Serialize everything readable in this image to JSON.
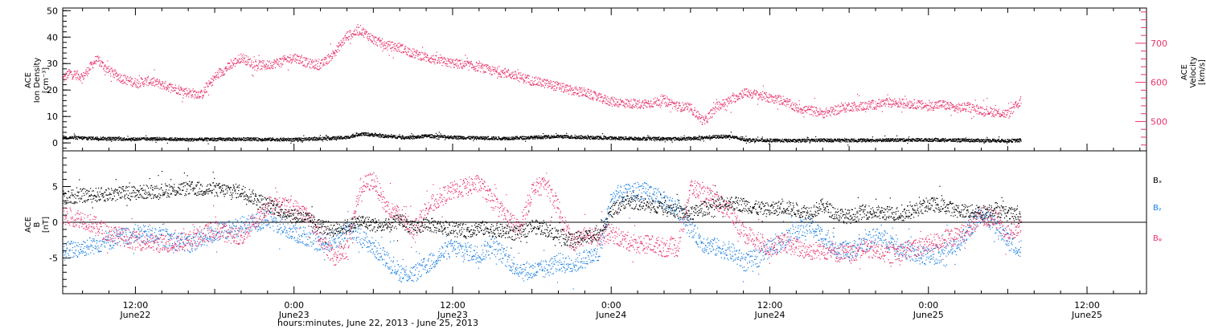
{
  "figure": {
    "x_axis_title": "hours:minutes, June 22, 2013 - June 25, 2013"
  },
  "x_ticks": [
    {
      "hhmm": "12:00",
      "day": "June22",
      "hour": 12
    },
    {
      "hhmm": "0:00",
      "day": "June23",
      "hour": 24
    },
    {
      "hhmm": "12:00",
      "day": "June23",
      "hour": 36
    },
    {
      "hhmm": "0:00",
      "day": "June24",
      "hour": 48
    },
    {
      "hhmm": "12:00",
      "day": "June24",
      "hour": 60
    },
    {
      "hhmm": "0:00",
      "day": "June25",
      "hour": 72
    },
    {
      "hhmm": "12:00",
      "day": "June25",
      "hour": 84
    }
  ],
  "colors": {
    "density": "#000000",
    "velocity": "#e8336b",
    "bx": "#000000",
    "by": "#1a7fe0",
    "bz": "#e8336b",
    "axis": "#000000"
  },
  "chart_data": [
    {
      "type": "scatter",
      "name": "ACE plasma panel",
      "x_unit": "hours since June 22, 2013 00:00",
      "xlim": [
        6.5,
        88.5
      ],
      "left_axis": {
        "label_lines": [
          "ACE",
          "Ion Density",
          "[cm⁻³]"
        ],
        "ylim": [
          -3,
          51
        ],
        "ticks": [
          0,
          10,
          20,
          30,
          40,
          50
        ]
      },
      "right_axis": {
        "label_lines": [
          "ACE",
          "Velocity",
          "[km/s]"
        ],
        "ylim": [
          425,
          790
        ],
        "ticks": [
          500,
          600,
          700
        ]
      },
      "series": [
        {
          "name": "Ion Density",
          "axis": "left",
          "x": [
            6.5,
            8,
            10,
            12,
            14,
            16,
            18,
            20,
            22,
            24,
            26,
            28,
            29,
            30,
            31,
            32,
            33,
            34,
            36,
            38,
            40,
            42,
            44,
            46,
            48,
            50,
            52,
            54,
            56,
            57,
            58,
            60,
            62,
            64,
            66,
            68,
            70,
            72,
            74,
            76,
            78,
            79
          ],
          "y": [
            2.2,
            2.0,
            1.8,
            1.6,
            1.7,
            1.4,
            1.5,
            1.6,
            1.5,
            1.4,
            1.8,
            2.2,
            3.6,
            3.2,
            2.6,
            2.4,
            2.2,
            2.8,
            2.3,
            2.0,
            1.9,
            2.2,
            2.6,
            2.2,
            2.0,
            1.8,
            1.7,
            1.8,
            2.5,
            2.6,
            1.4,
            1.1,
            1.0,
            1.2,
            1.1,
            1.2,
            1.3,
            1.3,
            1.2,
            1.1,
            1.0,
            1.1
          ]
        },
        {
          "name": "Velocity",
          "axis": "right",
          "x": [
            6.5,
            7,
            8,
            9,
            10,
            11,
            12,
            13,
            14,
            15,
            16,
            17,
            18,
            19,
            20,
            21,
            22,
            23,
            24,
            25,
            26,
            27,
            28,
            29,
            30,
            31,
            32,
            33,
            34,
            35,
            36,
            37,
            38,
            39,
            40,
            41,
            42,
            43,
            44,
            45,
            46,
            47,
            48,
            49,
            50,
            51,
            52,
            53,
            54,
            55,
            56,
            57,
            58,
            59,
            60,
            61,
            62,
            63,
            64,
            65,
            66,
            67,
            68,
            69,
            70,
            71,
            72,
            73,
            74,
            75,
            76,
            77,
            78,
            79
          ],
          "y": [
            610,
            625,
            615,
            660,
            630,
            610,
            600,
            605,
            595,
            585,
            575,
            570,
            615,
            640,
            665,
            645,
            645,
            655,
            665,
            650,
            645,
            675,
            720,
            735,
            710,
            695,
            690,
            675,
            665,
            655,
            650,
            645,
            640,
            630,
            625,
            615,
            605,
            598,
            590,
            580,
            575,
            562,
            552,
            548,
            545,
            548,
            556,
            540,
            535,
            500,
            540,
            555,
            575,
            570,
            560,
            555,
            535,
            530,
            522,
            530,
            540,
            540,
            545,
            550,
            548,
            545,
            540,
            545,
            535,
            538,
            530,
            525,
            520,
            555
          ]
        }
      ]
    },
    {
      "type": "scatter",
      "name": "ACE magnetic field panel",
      "x_unit": "hours since June 22, 2013 00:00",
      "xlim": [
        6.5,
        88.5
      ],
      "left_axis": {
        "label_lines": [
          "ACE",
          "B",
          "[nT]"
        ],
        "ylim": [
          -10,
          10
        ],
        "ticks": [
          -5,
          0,
          5
        ]
      },
      "zero_line": 0,
      "legend": {
        "position": "right",
        "entries": [
          "Bₓ",
          "Bᵧ",
          "Bᵩ"
        ]
      },
      "series": [
        {
          "name": "Bx",
          "x": [
            6.5,
            8,
            10,
            12,
            14,
            16,
            18,
            20,
            22,
            24,
            25,
            26,
            27,
            28,
            29,
            30,
            31,
            32,
            33,
            34,
            35,
            36,
            37,
            38,
            39,
            40,
            41,
            42,
            43,
            44,
            45,
            46,
            47,
            48,
            49,
            50,
            51,
            52,
            53,
            54,
            55,
            56,
            57,
            58,
            59,
            60,
            61,
            62,
            63,
            64,
            65,
            66,
            67,
            68,
            69,
            70,
            71,
            72,
            73,
            74,
            75,
            76,
            77,
            78,
            79
          ],
          "y": [
            3.5,
            3.8,
            4.0,
            4.2,
            4.5,
            4.8,
            4.6,
            4.4,
            2.5,
            1.0,
            0.5,
            -0.5,
            -1.0,
            -0.5,
            0.2,
            -0.3,
            -0.6,
            0.4,
            -0.8,
            -0.2,
            -0.6,
            -0.9,
            -1.2,
            -0.7,
            -1.0,
            -1.3,
            -1.5,
            -0.5,
            -0.9,
            -1.8,
            -2.5,
            -2.0,
            -1.5,
            1.5,
            3.0,
            2.8,
            2.2,
            2.5,
            1.5,
            1.2,
            2.0,
            2.5,
            2.8,
            2.5,
            2.0,
            1.8,
            2.2,
            1.8,
            1.4,
            2.4,
            1.2,
            0.8,
            1.5,
            1.4,
            1.3,
            1.2,
            1.8,
            2.6,
            2.4,
            1.8,
            1.6,
            1.4,
            2.0,
            1.2,
            1.0
          ]
        },
        {
          "name": "By",
          "x": [
            6.5,
            8,
            10,
            12,
            14,
            16,
            18,
            20,
            22,
            24,
            25,
            26,
            27,
            28,
            29,
            30,
            31,
            32,
            33,
            34,
            35,
            36,
            37,
            38,
            39,
            40,
            41,
            42,
            43,
            44,
            45,
            46,
            47,
            48,
            49,
            50,
            51,
            52,
            53,
            54,
            55,
            56,
            57,
            58,
            59,
            60,
            61,
            62,
            63,
            64,
            65,
            66,
            67,
            68,
            69,
            70,
            71,
            72,
            73,
            74,
            75,
            76,
            77,
            78,
            79
          ],
          "y": [
            -4.0,
            -3.5,
            -2.5,
            -1.5,
            -2.0,
            -3.0,
            -1.5,
            -0.5,
            0.5,
            -1.5,
            -2.0,
            -3.0,
            -2.5,
            -1.0,
            -2.0,
            -3.5,
            -5.0,
            -7.0,
            -7.2,
            -6.0,
            -4.5,
            -3.5,
            -4.0,
            -4.5,
            -3.0,
            -5.0,
            -6.5,
            -6.8,
            -6.5,
            -5.5,
            -6.0,
            -5.0,
            -4.5,
            3.5,
            4.0,
            4.5,
            4.2,
            3.0,
            2.0,
            -1.0,
            -3.0,
            -3.5,
            -4.0,
            -5.5,
            -5.0,
            -3.5,
            -2.5,
            -1.0,
            -0.5,
            -2.0,
            -3.5,
            -4.0,
            -3.0,
            -2.0,
            -2.5,
            -3.5,
            -4.5,
            -4.8,
            -4.2,
            -3.5,
            -1.0,
            1.5,
            -0.5,
            -2.5,
            -3.8
          ]
        },
        {
          "name": "Bz",
          "x": [
            6.5,
            8,
            10,
            12,
            14,
            16,
            18,
            20,
            22,
            24,
            25,
            26,
            27,
            28,
            29,
            30,
            31,
            32,
            33,
            34,
            35,
            36,
            37,
            38,
            39,
            40,
            41,
            42,
            43,
            44,
            45,
            46,
            47,
            48,
            49,
            50,
            51,
            52,
            53,
            54,
            55,
            56,
            57,
            58,
            59,
            60,
            61,
            62,
            63,
            64,
            65,
            66,
            67,
            68,
            69,
            70,
            71,
            72,
            73,
            74,
            75,
            76,
            77,
            78,
            79
          ],
          "y": [
            1.0,
            0.5,
            -1.5,
            -2.5,
            -3.0,
            -2.5,
            -1.0,
            -2.0,
            2.5,
            2.0,
            1.0,
            -2.0,
            -5.0,
            -3.5,
            5.0,
            6.0,
            2.0,
            1.0,
            -1.0,
            2.0,
            3.5,
            4.5,
            5.0,
            5.5,
            3.0,
            1.0,
            -1.0,
            4.5,
            5.5,
            2.0,
            -3.0,
            -1.5,
            -2.0,
            -1.5,
            -2.5,
            -3.0,
            -3.0,
            -3.5,
            -3.5,
            5.0,
            4.0,
            3.0,
            1.5,
            -1.5,
            -2.5,
            -3.5,
            -2.8,
            -3.5,
            -4.0,
            -3.8,
            -4.2,
            -4.5,
            -3.5,
            -4.0,
            -4.5,
            -4.0,
            -3.5,
            -3.0,
            -2.5,
            -2.0,
            -1.0,
            1.0,
            0.5,
            -1.5,
            -0.5
          ]
        }
      ]
    }
  ]
}
